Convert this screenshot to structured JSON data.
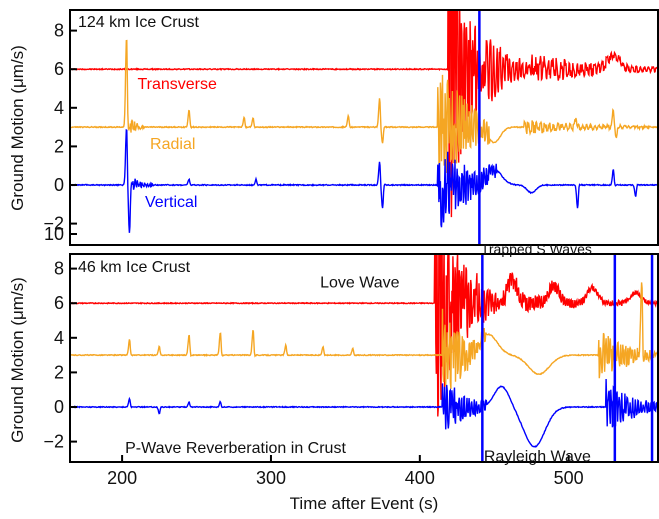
{
  "chart_data": [
    {
      "type": "line",
      "title": "124 km Ice Crust",
      "xlabel": "Time after Event (s)",
      "ylabel": "Ground Motion (μm/s)",
      "xlim": [
        165,
        560
      ],
      "ylim": [
        -3,
        10
      ],
      "yticks": [
        -2,
        0,
        2,
        4,
        6,
        8,
        10
      ],
      "legend": "none",
      "grid": false,
      "series": [
        {
          "name": "Transverse",
          "color": "#ff0000",
          "offset": 6,
          "events": [
            {
              "t": 418,
              "kind": "rise",
              "amp": 4.5
            },
            {
              "t": 419,
              "kind": "burst",
              "amp": 9,
              "width": 26,
              "freq": 1.3
            },
            {
              "t": 445,
              "kind": "burst",
              "amp": 2.2,
              "width": 30,
              "freq": 0.9
            },
            {
              "t": 475,
              "kind": "burst",
              "amp": 0.9,
              "width": 85,
              "freq": 0.7
            },
            {
              "t": 530,
              "kind": "bump",
              "amp": 0.7,
              "width": 8
            }
          ]
        },
        {
          "name": "Radial",
          "color": "#f5a623",
          "offset": 3,
          "events": [
            {
              "t": 203,
              "kind": "spike",
              "amp": 4.7
            },
            {
              "t": 205,
              "kind": "burst",
              "amp": 0.6,
              "width": 10,
              "freq": 1.2
            },
            {
              "t": 245,
              "kind": "spike",
              "amp": 0.9
            },
            {
              "t": 282,
              "kind": "spike",
              "amp": 0.5
            },
            {
              "t": 288,
              "kind": "spike",
              "amp": 0.5
            },
            {
              "t": 352,
              "kind": "spike",
              "amp": 0.6
            },
            {
              "t": 373,
              "kind": "spike",
              "amp": 1.5
            },
            {
              "t": 375,
              "kind": "spike",
              "amp": -0.8
            },
            {
              "t": 412,
              "kind": "burst",
              "amp": 4,
              "width": 35,
              "freq": 1.2
            },
            {
              "t": 450,
              "kind": "bump",
              "amp": -0.8,
              "width": 8
            },
            {
              "t": 470,
              "kind": "burst",
              "amp": 0.4,
              "width": 85,
              "freq": 0.7
            },
            {
              "t": 505,
              "kind": "spike",
              "amp": 0.5
            },
            {
              "t": 530,
              "kind": "spike",
              "amp": 0.9
            },
            {
              "t": 532,
              "kind": "spike",
              "amp": -0.6
            }
          ]
        },
        {
          "name": "Vertical",
          "color": "#0000ff",
          "offset": 0,
          "events": [
            {
              "t": 203,
              "kind": "spike",
              "amp": 3
            },
            {
              "t": 205,
              "kind": "spike",
              "amp": -2.5
            },
            {
              "t": 207,
              "kind": "burst",
              "amp": 0.4,
              "width": 14,
              "freq": 1.2
            },
            {
              "t": 245,
              "kind": "spike",
              "amp": 0.3
            },
            {
              "t": 290,
              "kind": "spike",
              "amp": 0.3
            },
            {
              "t": 373,
              "kind": "spike",
              "amp": 1.2
            },
            {
              "t": 375,
              "kind": "spike",
              "amp": -1.2
            },
            {
              "t": 412,
              "kind": "burst",
              "amp": 2.5,
              "width": 40,
              "freq": 1.2
            },
            {
              "t": 440,
              "kind": "vline",
              "amp": 11
            },
            {
              "t": 450,
              "kind": "bump",
              "amp": 0.8,
              "width": 10
            },
            {
              "t": 475,
              "kind": "bump",
              "amp": -0.4,
              "width": 6
            },
            {
              "t": 506,
              "kind": "spike",
              "amp": -1.2
            },
            {
              "t": 530,
              "kind": "spike",
              "amp": 0.8
            },
            {
              "t": 545,
              "kind": "spike",
              "amp": -0.6
            }
          ]
        }
      ],
      "annotations": []
    },
    {
      "type": "line",
      "title": "46 km Ice Crust",
      "xlabel": "Time after Event (s)",
      "ylabel": "Ground Motion (μm/s)",
      "xlim": [
        165,
        560
      ],
      "ylim": [
        -3,
        10
      ],
      "xticks": [
        200,
        300,
        400,
        500
      ],
      "yticks": [
        -2,
        0,
        2,
        4,
        6,
        8,
        10
      ],
      "legend": "none",
      "grid": false,
      "series": [
        {
          "name": "",
          "color": "#ff0000",
          "offset": 6,
          "events": [
            {
              "t": 412,
              "kind": "rise",
              "amp": 4.5
            },
            {
              "t": 410,
              "kind": "burst",
              "amp": 9,
              "width": 28,
              "freq": 1.3
            },
            {
              "t": 438,
              "kind": "burst",
              "amp": 2,
              "width": 20,
              "freq": 1.1
            },
            {
              "t": 455,
              "kind": "burst",
              "amp": 0.7,
              "width": 105,
              "freq": 1.4
            },
            {
              "t": 462,
              "kind": "bump",
              "amp": 1.3,
              "width": 7
            },
            {
              "t": 490,
              "kind": "bump",
              "amp": 1,
              "width": 7
            },
            {
              "t": 516,
              "kind": "bump",
              "amp": 0.9,
              "width": 7
            },
            {
              "t": 545,
              "kind": "bump",
              "amp": 0.6,
              "width": 7
            }
          ]
        },
        {
          "name": "",
          "color": "#f5a623",
          "offset": 3,
          "events": [
            {
              "t": 205,
              "kind": "spike",
              "amp": 0.9
            },
            {
              "t": 225,
              "kind": "spike",
              "amp": 0.5
            },
            {
              "t": 245,
              "kind": "spike",
              "amp": 1.2
            },
            {
              "t": 266,
              "kind": "spike",
              "amp": 1.3
            },
            {
              "t": 288,
              "kind": "spike",
              "amp": 1.5
            },
            {
              "t": 310,
              "kind": "spike",
              "amp": 0.6
            },
            {
              "t": 335,
              "kind": "spike",
              "amp": 0.5
            },
            {
              "t": 355,
              "kind": "spike",
              "amp": 0.4
            },
            {
              "t": 415,
              "kind": "burst",
              "amp": 3,
              "width": 30,
              "freq": 1.2
            },
            {
              "t": 446,
              "kind": "bump",
              "amp": 1.2,
              "width": 12
            },
            {
              "t": 480,
              "kind": "bump",
              "amp": -1.1,
              "width": 14
            },
            {
              "t": 520,
              "kind": "burst",
              "amp": 1.6,
              "width": 40,
              "freq": 1.2
            },
            {
              "t": 549,
              "kind": "spike",
              "amp": 4.5
            }
          ]
        },
        {
          "name": "",
          "color": "#0000ff",
          "offset": 0,
          "events": [
            {
              "t": 205,
              "kind": "spike",
              "amp": 0.5
            },
            {
              "t": 225,
              "kind": "spike",
              "amp": -0.4
            },
            {
              "t": 245,
              "kind": "spike",
              "amp": 0.3
            },
            {
              "t": 266,
              "kind": "spike",
              "amp": 0.3
            },
            {
              "t": 415,
              "kind": "burst",
              "amp": 2,
              "width": 30,
              "freq": 1.2
            },
            {
              "t": 442,
              "kind": "vline",
              "amp": 11
            },
            {
              "t": 455,
              "kind": "bump",
              "amp": 1.2,
              "width": 10
            },
            {
              "t": 477,
              "kind": "bump",
              "amp": -2.3,
              "width": 14
            },
            {
              "t": 525,
              "kind": "burst",
              "amp": 1.8,
              "width": 35,
              "freq": 1.1
            },
            {
              "t": 531,
              "kind": "vline",
              "amp": 11
            },
            {
              "t": 556,
              "kind": "vline",
              "amp": 11
            }
          ]
        }
      ],
      "annotations": [
        {
          "text": "Love Wave",
          "t": 333,
          "y": 6.9,
          "size": "lg"
        },
        {
          "text": "Trapped S Waves",
          "t": 441,
          "y": 8.85,
          "size": "sm"
        },
        {
          "text": "P-Wave Reverberation in Crust",
          "t": 202,
          "y": -2.65,
          "size": "lg"
        },
        {
          "text": "Rayleigh Wave",
          "t": 443,
          "y": -3.15,
          "size": "lg"
        }
      ]
    }
  ]
}
